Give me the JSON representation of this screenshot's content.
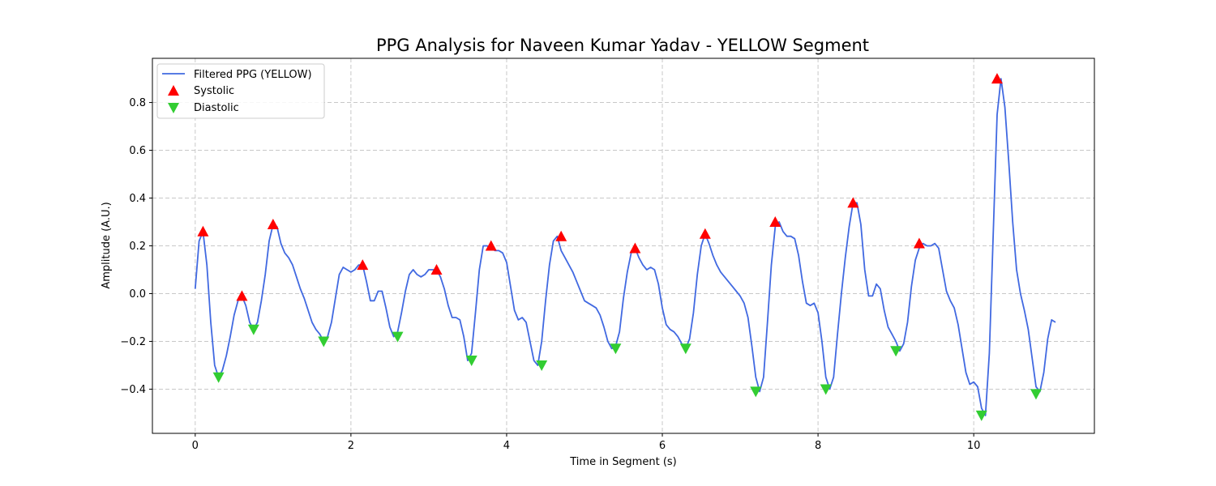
{
  "chart_data": {
    "type": "line",
    "title": "PPG Analysis for Naveen Kumar Yadav - YELLOW Segment",
    "xlabel": "Time in Segment (s)",
    "ylabel": "Amplitude (A.U.)",
    "xlim": [
      -0.55,
      11.55
    ],
    "ylim": [
      -0.585,
      0.985
    ],
    "xticks": [
      0,
      2,
      4,
      6,
      8,
      10
    ],
    "yticks": [
      -0.4,
      -0.2,
      0.0,
      0.2,
      0.4,
      0.6,
      0.8
    ],
    "ytick_labels": [
      "−0.4",
      "−0.2",
      "0.0",
      "0.2",
      "0.4",
      "0.6",
      "0.8"
    ],
    "grid": true,
    "legend_position": "top-left",
    "colors": {
      "line": "#4169e1",
      "systolic": "#ff0000",
      "diastolic": "#32cd32"
    },
    "series": [
      {
        "name": "Filtered PPG (YELLOW)",
        "kind": "line",
        "x": [
          0.0,
          0.05,
          0.1,
          0.15,
          0.2,
          0.25,
          0.3,
          0.35,
          0.4,
          0.45,
          0.5,
          0.55,
          0.6,
          0.65,
          0.7,
          0.75,
          0.8,
          0.85,
          0.9,
          0.95,
          1.0,
          1.05,
          1.1,
          1.15,
          1.2,
          1.25,
          1.3,
          1.35,
          1.4,
          1.45,
          1.5,
          1.55,
          1.6,
          1.65,
          1.7,
          1.75,
          1.8,
          1.85,
          1.9,
          1.95,
          2.0,
          2.05,
          2.1,
          2.15,
          2.2,
          2.25,
          2.3,
          2.35,
          2.4,
          2.45,
          2.5,
          2.55,
          2.6,
          2.65,
          2.7,
          2.75,
          2.8,
          2.85,
          2.9,
          2.95,
          3.0,
          3.05,
          3.1,
          3.15,
          3.2,
          3.25,
          3.3,
          3.35,
          3.4,
          3.45,
          3.5,
          3.55,
          3.6,
          3.65,
          3.7,
          3.75,
          3.8,
          3.85,
          3.9,
          3.95,
          4.0,
          4.05,
          4.1,
          4.15,
          4.2,
          4.25,
          4.3,
          4.35,
          4.4,
          4.45,
          4.5,
          4.55,
          4.6,
          4.65,
          4.7,
          4.75,
          4.8,
          4.85,
          4.9,
          4.95,
          5.0,
          5.05,
          5.1,
          5.15,
          5.2,
          5.25,
          5.3,
          5.35,
          5.4,
          5.45,
          5.5,
          5.55,
          5.6,
          5.65,
          5.7,
          5.75,
          5.8,
          5.85,
          5.9,
          5.95,
          6.0,
          6.05,
          6.1,
          6.15,
          6.2,
          6.25,
          6.3,
          6.35,
          6.4,
          6.45,
          6.5,
          6.55,
          6.6,
          6.65,
          6.7,
          6.75,
          6.8,
          6.85,
          6.9,
          6.95,
          7.0,
          7.05,
          7.1,
          7.15,
          7.2,
          7.25,
          7.3,
          7.35,
          7.4,
          7.45,
          7.5,
          7.55,
          7.6,
          7.65,
          7.7,
          7.75,
          7.8,
          7.85,
          7.9,
          7.95,
          8.0,
          8.05,
          8.1,
          8.15,
          8.2,
          8.25,
          8.3,
          8.35,
          8.4,
          8.45,
          8.5,
          8.55,
          8.6,
          8.65,
          8.7,
          8.75,
          8.8,
          8.85,
          8.9,
          8.95,
          9.0,
          9.05,
          9.1,
          9.15,
          9.2,
          9.25,
          9.3,
          9.35,
          9.4,
          9.45,
          9.5,
          9.55,
          9.6,
          9.65,
          9.7,
          9.75,
          9.8,
          9.85,
          9.9,
          9.95,
          10.0,
          10.05,
          10.1,
          10.15,
          10.2,
          10.25,
          10.3,
          10.35,
          10.4,
          10.45,
          10.5,
          10.55,
          10.6,
          10.65,
          10.7,
          10.75,
          10.8,
          10.85,
          10.9,
          10.95,
          11.0,
          11.05
        ],
        "y": [
          0.02,
          0.22,
          0.26,
          0.12,
          -0.12,
          -0.3,
          -0.35,
          -0.32,
          -0.26,
          -0.18,
          -0.09,
          -0.03,
          -0.01,
          -0.05,
          -0.12,
          -0.15,
          -0.12,
          -0.03,
          0.08,
          0.22,
          0.29,
          0.28,
          0.21,
          0.17,
          0.15,
          0.12,
          0.07,
          0.02,
          -0.02,
          -0.07,
          -0.12,
          -0.15,
          -0.17,
          -0.2,
          -0.18,
          -0.12,
          -0.02,
          0.08,
          0.11,
          0.1,
          0.09,
          0.1,
          0.12,
          0.12,
          0.05,
          -0.03,
          -0.03,
          0.01,
          0.01,
          -0.06,
          -0.14,
          -0.18,
          -0.16,
          -0.08,
          0.01,
          0.08,
          0.1,
          0.08,
          0.07,
          0.08,
          0.1,
          0.1,
          0.1,
          0.07,
          0.02,
          -0.05,
          -0.1,
          -0.1,
          -0.11,
          -0.18,
          -0.28,
          -0.25,
          -0.08,
          0.1,
          0.2,
          0.2,
          0.19,
          0.18,
          0.18,
          0.17,
          0.13,
          0.03,
          -0.07,
          -0.11,
          -0.1,
          -0.12,
          -0.2,
          -0.28,
          -0.3,
          -0.2,
          -0.03,
          0.12,
          0.22,
          0.24,
          0.18,
          0.15,
          0.12,
          0.09,
          0.05,
          0.01,
          -0.03,
          -0.04,
          -0.05,
          -0.06,
          -0.09,
          -0.14,
          -0.2,
          -0.23,
          -0.22,
          -0.16,
          -0.02,
          0.09,
          0.17,
          0.19,
          0.15,
          0.12,
          0.1,
          0.11,
          0.1,
          0.04,
          -0.06,
          -0.13,
          -0.15,
          -0.16,
          -0.18,
          -0.21,
          -0.23,
          -0.19,
          -0.08,
          0.08,
          0.2,
          0.25,
          0.21,
          0.16,
          0.12,
          0.09,
          0.07,
          0.05,
          0.03,
          0.01,
          -0.01,
          -0.04,
          -0.1,
          -0.22,
          -0.35,
          -0.41,
          -0.35,
          -0.12,
          0.12,
          0.28,
          0.3,
          0.26,
          0.24,
          0.24,
          0.23,
          0.16,
          0.05,
          -0.04,
          -0.05,
          -0.04,
          -0.08,
          -0.2,
          -0.35,
          -0.4,
          -0.35,
          -0.17,
          0.0,
          0.15,
          0.28,
          0.38,
          0.38,
          0.29,
          0.1,
          -0.01,
          -0.01,
          0.04,
          0.02,
          -0.07,
          -0.14,
          -0.17,
          -0.2,
          -0.24,
          -0.21,
          -0.12,
          0.03,
          0.14,
          0.19,
          0.21,
          0.2,
          0.2,
          0.21,
          0.19,
          0.1,
          0.01,
          -0.03,
          -0.06,
          -0.13,
          -0.23,
          -0.33,
          -0.38,
          -0.37,
          -0.39,
          -0.48,
          -0.51,
          -0.25,
          0.25,
          0.75,
          0.9,
          0.78,
          0.55,
          0.3,
          0.1,
          0.0,
          -0.07,
          -0.15,
          -0.27,
          -0.39,
          -0.41,
          -0.33,
          -0.19,
          -0.11,
          -0.12
        ]
      },
      {
        "name": "Systolic",
        "kind": "marker",
        "x": [
          0.1,
          0.6,
          1.0,
          2.15,
          3.1,
          3.8,
          4.7,
          5.65,
          6.55,
          7.45,
          8.45,
          9.3,
          10.3
        ],
        "y": [
          0.26,
          -0.01,
          0.29,
          0.12,
          0.1,
          0.2,
          0.24,
          0.19,
          0.25,
          0.3,
          0.38,
          0.21,
          0.9
        ]
      },
      {
        "name": "Diastolic",
        "kind": "marker",
        "x": [
          0.3,
          0.75,
          1.65,
          2.6,
          3.55,
          4.45,
          5.4,
          6.3,
          7.2,
          8.1,
          9.0,
          10.1,
          10.8
        ],
        "y": [
          -0.35,
          -0.15,
          -0.2,
          -0.18,
          -0.28,
          -0.3,
          -0.23,
          -0.23,
          -0.41,
          -0.4,
          -0.24,
          -0.51,
          -0.42
        ]
      }
    ]
  }
}
